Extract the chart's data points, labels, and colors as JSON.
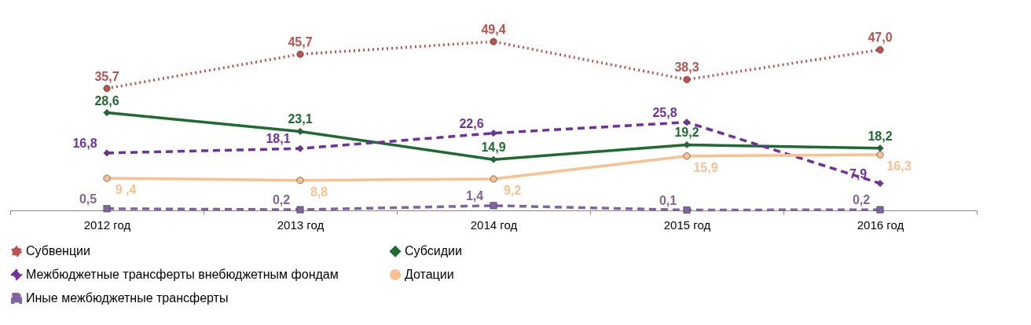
{
  "chart_data": {
    "type": "line",
    "categories": [
      "2012 год",
      "2013 год",
      "2014 год",
      "2015 год",
      "2016 год"
    ],
    "legend": "bottom",
    "grid": false,
    "series": [
      {
        "name": "Субвенции",
        "color": "#c0504d",
        "marker": "circle",
        "line_style": "dotted",
        "values": [
          35.7,
          45.7,
          49.4,
          38.3,
          47.0
        ],
        "value_labels": [
          "35,7",
          "45,7",
          "49,4",
          "38,3",
          "47,0"
        ]
      },
      {
        "name": "Субсидии",
        "color": "#1e6b32",
        "marker": "diamond",
        "line_style": "solid",
        "values": [
          28.6,
          23.1,
          14.9,
          19.2,
          18.2
        ],
        "value_labels": [
          "28,6",
          "23,1",
          "14,9",
          "19,2",
          "18,2"
        ]
      },
      {
        "name": "Межбюджетные трансферты внебюджетным фондам",
        "color": "#7030a0",
        "marker": "diamond",
        "line_style": "dashed",
        "values": [
          16.8,
          18.1,
          22.6,
          25.8,
          7.9
        ],
        "value_labels": [
          "16,8",
          "18,1",
          "22,6",
          "25,8",
          "7,9"
        ]
      },
      {
        "name": "Дотации",
        "color": "#fac090",
        "marker": "circle",
        "line_style": "solid",
        "values": [
          9.4,
          8.8,
          9.2,
          15.9,
          16.3
        ],
        "value_labels": [
          "9 ,4",
          "8,8",
          "9,2",
          "15,9",
          "16,3"
        ]
      },
      {
        "name": "Иные межбюджетные трансферты",
        "color": "#8064a2",
        "marker": "square",
        "line_style": "dashed",
        "values": [
          0.5,
          0.2,
          1.4,
          0.1,
          0.2
        ],
        "value_labels": [
          "0,5",
          "0,2",
          "1,4",
          "0,1",
          "0,2"
        ]
      }
    ]
  }
}
